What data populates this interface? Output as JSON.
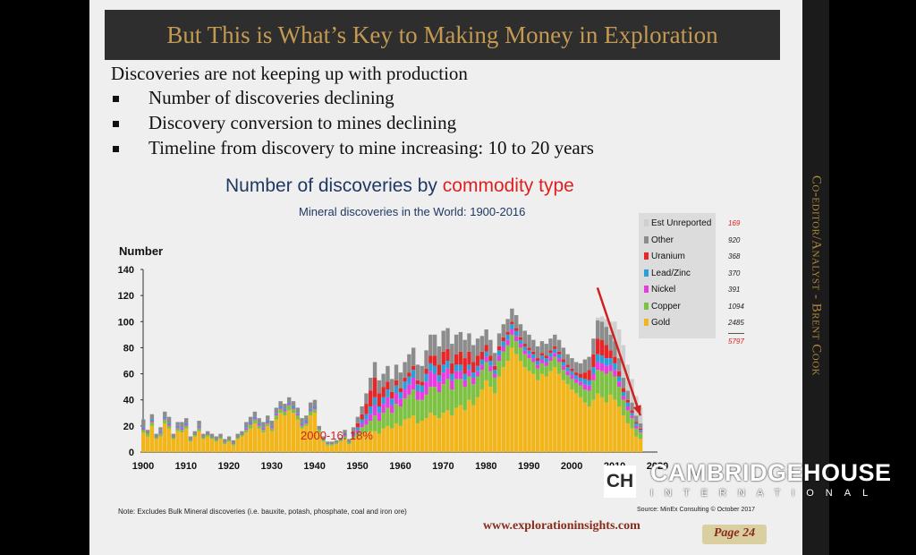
{
  "slide": {
    "title": "But This is What’s Key to Making Money in Exploration",
    "intro": "Discoveries are not keeping up with production",
    "bullets": [
      "Number of discoveries declining",
      "Discovery conversion to mines declining",
      "Timeline from discovery to mine increasing: 10 to 20 years"
    ],
    "sidebar_text": "Co-editor/Analyst - Brent Cook",
    "note": "Note:   Excludes Bulk Mineral discoveries (i.e. bauxite, potash, phosphate, coal and iron ore)",
    "source": "Source: MinEx Consulting © October 2017",
    "website": "www.explorationinsights.com",
    "page_label": "Page 24"
  },
  "watermark": {
    "badge": "CH",
    "name": "CAMBRIDGEHOUSE",
    "sub": "INTERNATIONAL"
  },
  "chart_data": {
    "type": "bar",
    "stacked": true,
    "title_main": "Number of discoveries by",
    "title_highlight": "commodity type",
    "subtitle": "Mineral discoveries in the World: 1900-2016",
    "ylabel": "Number",
    "ylim": [
      0,
      140
    ],
    "yticks": [
      0,
      20,
      40,
      60,
      80,
      100,
      120,
      140
    ],
    "xlim": [
      1900,
      2020
    ],
    "xticks": [
      1900,
      1910,
      1920,
      1930,
      1940,
      1950,
      1960,
      1970,
      1980,
      1990,
      2000,
      2010,
      2020
    ],
    "annotation": "2000-16: 18%",
    "legend_placement": "right",
    "legend": [
      {
        "name": "Est Unreported",
        "total": "169",
        "color": "#cfcfcf"
      },
      {
        "name": "Other",
        "total": "920",
        "color": "#8c8c8c"
      },
      {
        "name": "Uranium",
        "total": "368",
        "color": "#e8262a"
      },
      {
        "name": "Lead/Zinc",
        "total": "370",
        "color": "#2a9fd8"
      },
      {
        "name": "Nickel",
        "total": "391",
        "color": "#e83ce0"
      },
      {
        "name": "Copper",
        "total": "1094",
        "color": "#7dc242"
      },
      {
        "name": "Gold",
        "total": "2485",
        "color": "#f2b51a"
      }
    ],
    "legend_grand_total": "5797",
    "total_color": "#e02020",
    "trend_arrow": {
      "from": [
        2006,
        126
      ],
      "to": [
        2016,
        28
      ],
      "color": "#d02020"
    },
    "years": [
      1900,
      1901,
      1902,
      1903,
      1904,
      1905,
      1906,
      1907,
      1908,
      1909,
      1910,
      1911,
      1912,
      1913,
      1914,
      1915,
      1916,
      1917,
      1918,
      1919,
      1920,
      1921,
      1922,
      1923,
      1924,
      1925,
      1926,
      1927,
      1928,
      1929,
      1930,
      1931,
      1932,
      1933,
      1934,
      1935,
      1936,
      1937,
      1938,
      1939,
      1940,
      1941,
      1942,
      1943,
      1944,
      1945,
      1946,
      1947,
      1948,
      1949,
      1950,
      1951,
      1952,
      1953,
      1954,
      1955,
      1956,
      1957,
      1958,
      1959,
      1960,
      1961,
      1962,
      1963,
      1964,
      1965,
      1966,
      1967,
      1968,
      1969,
      1970,
      1971,
      1972,
      1973,
      1974,
      1975,
      1976,
      1977,
      1978,
      1979,
      1980,
      1981,
      1982,
      1983,
      1984,
      1985,
      1986,
      1987,
      1988,
      1989,
      1990,
      1991,
      1992,
      1993,
      1994,
      1995,
      1996,
      1997,
      1998,
      1999,
      2000,
      2001,
      2002,
      2003,
      2004,
      2005,
      2006,
      2007,
      2008,
      2009,
      2010,
      2011,
      2012,
      2013,
      2014,
      2015,
      2016
    ],
    "series": [
      {
        "name": "Gold",
        "values": [
          15,
          12,
          20,
          10,
          12,
          22,
          18,
          10,
          16,
          15,
          18,
          8,
          12,
          16,
          10,
          12,
          10,
          8,
          10,
          6,
          8,
          5,
          10,
          12,
          15,
          18,
          22,
          18,
          15,
          20,
          16,
          25,
          30,
          28,
          32,
          30,
          25,
          18,
          20,
          28,
          30,
          15,
          8,
          5,
          5,
          6,
          8,
          10,
          6,
          10,
          12,
          14,
          15,
          16,
          16,
          14,
          18,
          20,
          18,
          22,
          20,
          25,
          26,
          28,
          22,
          24,
          26,
          30,
          28,
          26,
          30,
          32,
          28,
          34,
          36,
          32,
          40,
          36,
          42,
          48,
          55,
          50,
          45,
          58,
          65,
          70,
          80,
          75,
          70,
          65,
          62,
          60,
          55,
          60,
          58,
          62,
          65,
          60,
          55,
          52,
          48,
          45,
          42,
          38,
          35,
          40,
          45,
          42,
          38,
          44,
          40,
          35,
          28,
          22,
          18,
          12,
          10
        ]
      },
      {
        "name": "Copper",
        "values": [
          2,
          2,
          3,
          1,
          2,
          3,
          2,
          1,
          2,
          2,
          2,
          1,
          1,
          2,
          1,
          1,
          1,
          1,
          1,
          1,
          1,
          1,
          1,
          1,
          2,
          3,
          3,
          2,
          2,
          2,
          2,
          3,
          3,
          3,
          4,
          3,
          3,
          2,
          2,
          3,
          3,
          2,
          1,
          1,
          1,
          1,
          1,
          2,
          1,
          2,
          3,
          5,
          6,
          8,
          12,
          10,
          12,
          14,
          12,
          15,
          15,
          16,
          18,
          20,
          18,
          16,
          18,
          20,
          22,
          20,
          22,
          24,
          20,
          22,
          20,
          18,
          18,
          16,
          16,
          15,
          14,
          12,
          12,
          12,
          12,
          12,
          10,
          10,
          10,
          10,
          10,
          9,
          9,
          8,
          8,
          8,
          8,
          9,
          8,
          7,
          8,
          8,
          9,
          10,
          12,
          15,
          18,
          20,
          22,
          18,
          18,
          15,
          12,
          10,
          8,
          6,
          5
        ]
      },
      {
        "name": "Nickel",
        "values": [
          1,
          0,
          1,
          0,
          1,
          1,
          1,
          0,
          1,
          1,
          1,
          0,
          0,
          1,
          0,
          0,
          0,
          0,
          0,
          0,
          0,
          0,
          0,
          0,
          1,
          1,
          1,
          1,
          1,
          1,
          1,
          1,
          1,
          1,
          1,
          1,
          1,
          1,
          1,
          1,
          1,
          0,
          0,
          0,
          0,
          0,
          0,
          1,
          0,
          1,
          2,
          3,
          4,
          5,
          8,
          6,
          7,
          8,
          6,
          8,
          6,
          7,
          8,
          9,
          7,
          6,
          10,
          12,
          10,
          8,
          9,
          8,
          7,
          6,
          6,
          5,
          5,
          5,
          4,
          4,
          4,
          4,
          3,
          4,
          4,
          4,
          4,
          4,
          3,
          3,
          3,
          3,
          3,
          3,
          3,
          3,
          3,
          3,
          3,
          3,
          3,
          3,
          3,
          4,
          4,
          5,
          6,
          6,
          6,
          5,
          5,
          4,
          3,
          3,
          2,
          2,
          1
        ]
      },
      {
        "name": "Lead/Zinc",
        "values": [
          1,
          0,
          1,
          0,
          1,
          1,
          1,
          0,
          1,
          1,
          1,
          0,
          0,
          1,
          0,
          0,
          0,
          0,
          0,
          0,
          0,
          0,
          0,
          0,
          1,
          1,
          1,
          1,
          1,
          1,
          1,
          1,
          1,
          1,
          1,
          1,
          1,
          1,
          1,
          1,
          1,
          0,
          0,
          0,
          0,
          0,
          0,
          1,
          0,
          1,
          2,
          3,
          4,
          6,
          6,
          5,
          5,
          6,
          5,
          6,
          5,
          6,
          6,
          6,
          5,
          5,
          6,
          6,
          6,
          5,
          6,
          6,
          5,
          5,
          5,
          5,
          4,
          4,
          4,
          4,
          4,
          4,
          3,
          4,
          4,
          4,
          4,
          4,
          3,
          3,
          3,
          3,
          3,
          3,
          3,
          3,
          3,
          3,
          3,
          3,
          3,
          3,
          3,
          4,
          4,
          5,
          6,
          6,
          6,
          5,
          5,
          4,
          3,
          3,
          2,
          2,
          1
        ]
      },
      {
        "name": "Uranium",
        "values": [
          0,
          0,
          0,
          0,
          0,
          0,
          0,
          0,
          0,
          0,
          0,
          0,
          0,
          0,
          0,
          0,
          0,
          0,
          0,
          0,
          0,
          0,
          0,
          0,
          0,
          0,
          0,
          0,
          0,
          0,
          0,
          0,
          0,
          0,
          0,
          0,
          0,
          0,
          0,
          0,
          0,
          0,
          0,
          0,
          0,
          0,
          0,
          0,
          0,
          1,
          3,
          4,
          8,
          12,
          15,
          10,
          8,
          6,
          5,
          4,
          3,
          3,
          3,
          3,
          3,
          3,
          4,
          6,
          8,
          8,
          10,
          9,
          8,
          8,
          10,
          12,
          10,
          8,
          8,
          6,
          5,
          4,
          3,
          3,
          3,
          2,
          2,
          2,
          2,
          2,
          2,
          2,
          2,
          2,
          2,
          2,
          2,
          2,
          2,
          2,
          2,
          2,
          3,
          5,
          8,
          10,
          12,
          12,
          10,
          6,
          5,
          4,
          3,
          2,
          2,
          1,
          1
        ]
      },
      {
        "name": "Other",
        "values": [
          6,
          3,
          4,
          3,
          3,
          4,
          5,
          3,
          3,
          4,
          4,
          3,
          3,
          4,
          3,
          3,
          3,
          3,
          3,
          3,
          3,
          3,
          3,
          3,
          4,
          4,
          4,
          4,
          4,
          4,
          4,
          4,
          4,
          4,
          4,
          4,
          4,
          4,
          4,
          5,
          5,
          3,
          3,
          2,
          2,
          2,
          2,
          3,
          3,
          4,
          5,
          6,
          8,
          10,
          12,
          10,
          10,
          12,
          10,
          12,
          12,
          12,
          14,
          14,
          12,
          12,
          14,
          16,
          16,
          14,
          16,
          16,
          15,
          15,
          15,
          14,
          14,
          13,
          13,
          12,
          12,
          12,
          10,
          10,
          10,
          10,
          10,
          10,
          10,
          10,
          10,
          9,
          9,
          9,
          9,
          9,
          9,
          9,
          9,
          8,
          8,
          8,
          8,
          10,
          10,
          12,
          14,
          14,
          14,
          12,
          12,
          10,
          8,
          7,
          6,
          5,
          4
        ]
      },
      {
        "name": "Est Unreported",
        "values": [
          0,
          0,
          0,
          0,
          0,
          0,
          0,
          0,
          0,
          0,
          0,
          0,
          0,
          0,
          0,
          0,
          0,
          0,
          0,
          0,
          0,
          0,
          0,
          0,
          0,
          0,
          0,
          0,
          0,
          0,
          0,
          0,
          0,
          0,
          0,
          0,
          0,
          0,
          0,
          0,
          0,
          0,
          0,
          0,
          0,
          0,
          0,
          0,
          0,
          0,
          0,
          0,
          0,
          0,
          0,
          0,
          0,
          0,
          0,
          0,
          0,
          0,
          0,
          0,
          0,
          0,
          0,
          0,
          0,
          0,
          0,
          0,
          0,
          0,
          0,
          0,
          0,
          0,
          0,
          0,
          0,
          0,
          0,
          0,
          0,
          0,
          0,
          0,
          0,
          0,
          0,
          0,
          0,
          0,
          0,
          0,
          0,
          0,
          0,
          0,
          0,
          0,
          0,
          0,
          0,
          0,
          2,
          4,
          6,
          10,
          15,
          22,
          25,
          20,
          18,
          15,
          12
        ]
      }
    ]
  }
}
